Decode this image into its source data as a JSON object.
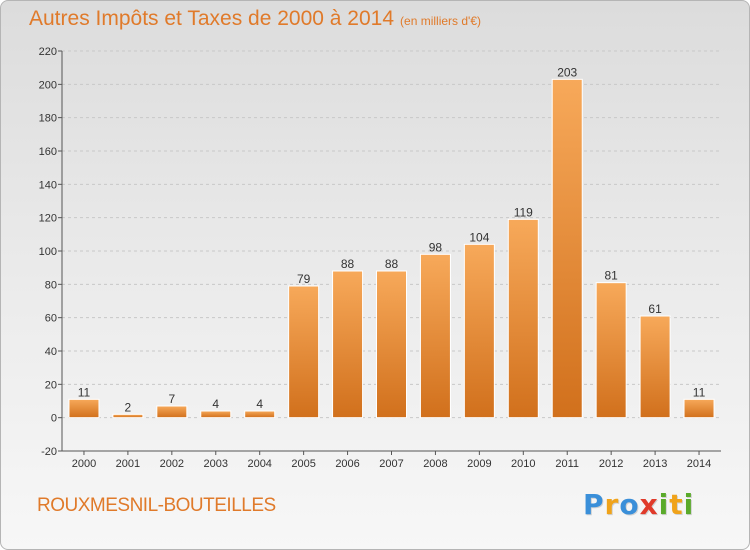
{
  "header": {
    "title": "Autres Impôts et Taxes de 2000 à 2014",
    "subtitle": "(en milliers d'€)"
  },
  "footer": {
    "commune": "ROUXMESNIL-BOUTEILLES",
    "logo_letters": [
      "P",
      "r",
      "o",
      "x",
      "i",
      "t",
      "i"
    ],
    "logo_colors": [
      "#3a8fd9",
      "#f0a31a",
      "#3a8fd9",
      "#e03a2a",
      "#5aaa2a",
      "#f0a31a",
      "#5aaa2a"
    ]
  },
  "colors": {
    "accent": "#e07a2a",
    "bar_light": "#f7a95a",
    "bar_dark": "#d1701c"
  },
  "chart_data": {
    "type": "bar",
    "title": "Autres Impôts et Taxes de 2000 à 2014",
    "subtitle": "(en milliers d'€)",
    "categories": [
      "2000",
      "2001",
      "2002",
      "2003",
      "2004",
      "2005",
      "2006",
      "2007",
      "2008",
      "2009",
      "2010",
      "2011",
      "2012",
      "2013",
      "2014"
    ],
    "values": [
      11,
      2,
      7,
      4,
      4,
      79,
      88,
      88,
      98,
      104,
      119,
      203,
      81,
      61,
      11
    ],
    "data_labels": [
      "11",
      "2",
      "7",
      "4",
      "4",
      "79",
      "88",
      "88",
      "98",
      "104",
      "119",
      "203",
      "81",
      "61",
      "11"
    ],
    "ylim": [
      -20,
      220
    ],
    "yticks": [
      -20,
      0,
      20,
      40,
      60,
      80,
      100,
      120,
      140,
      160,
      180,
      200,
      220
    ],
    "grid": true,
    "xlabel": "",
    "ylabel": ""
  }
}
